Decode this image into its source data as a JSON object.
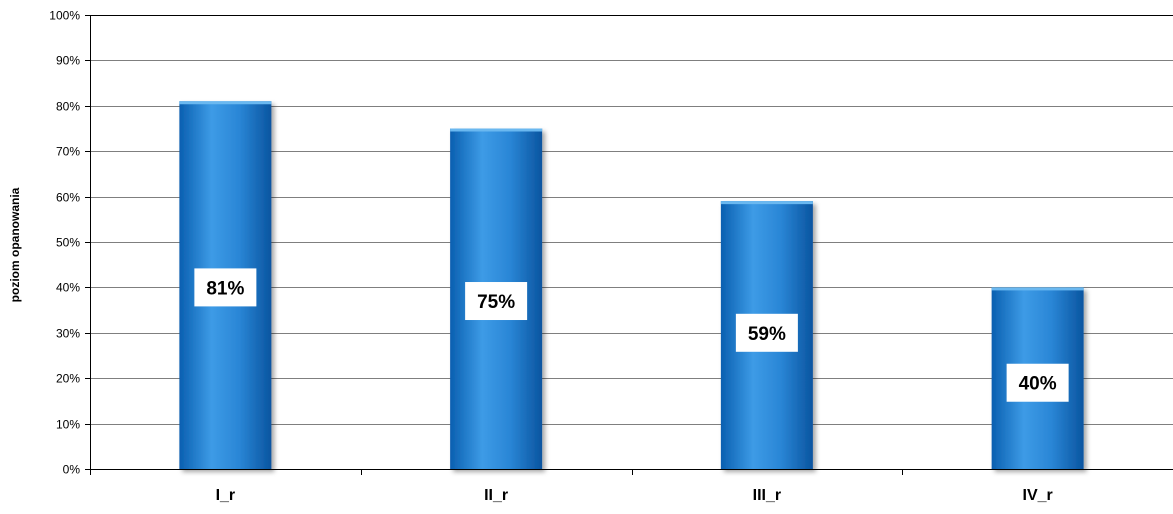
{
  "chart_data": {
    "type": "bar",
    "categories": [
      "I_r",
      "II_r",
      "III_r",
      "IV_r"
    ],
    "values": [
      81,
      75,
      59,
      40
    ],
    "data_labels": [
      "81%",
      "75%",
      "59%",
      "40%"
    ],
    "label_positions": [
      40,
      37,
      30,
      19
    ],
    "ylabel": "poziom opanowania",
    "xlabel": "",
    "ylim": [
      0,
      100
    ],
    "y_ticks": [
      "0%",
      "10%",
      "20%",
      "30%",
      "40%",
      "50%",
      "60%",
      "70%",
      "80%",
      "90%",
      "100%"
    ],
    "grid": true,
    "legend": "none",
    "colors": {
      "bar_light": "#3d9be6",
      "bar_dark": "#0a5fb0",
      "grid": "#7f7f7f",
      "axis": "#000000"
    }
  }
}
